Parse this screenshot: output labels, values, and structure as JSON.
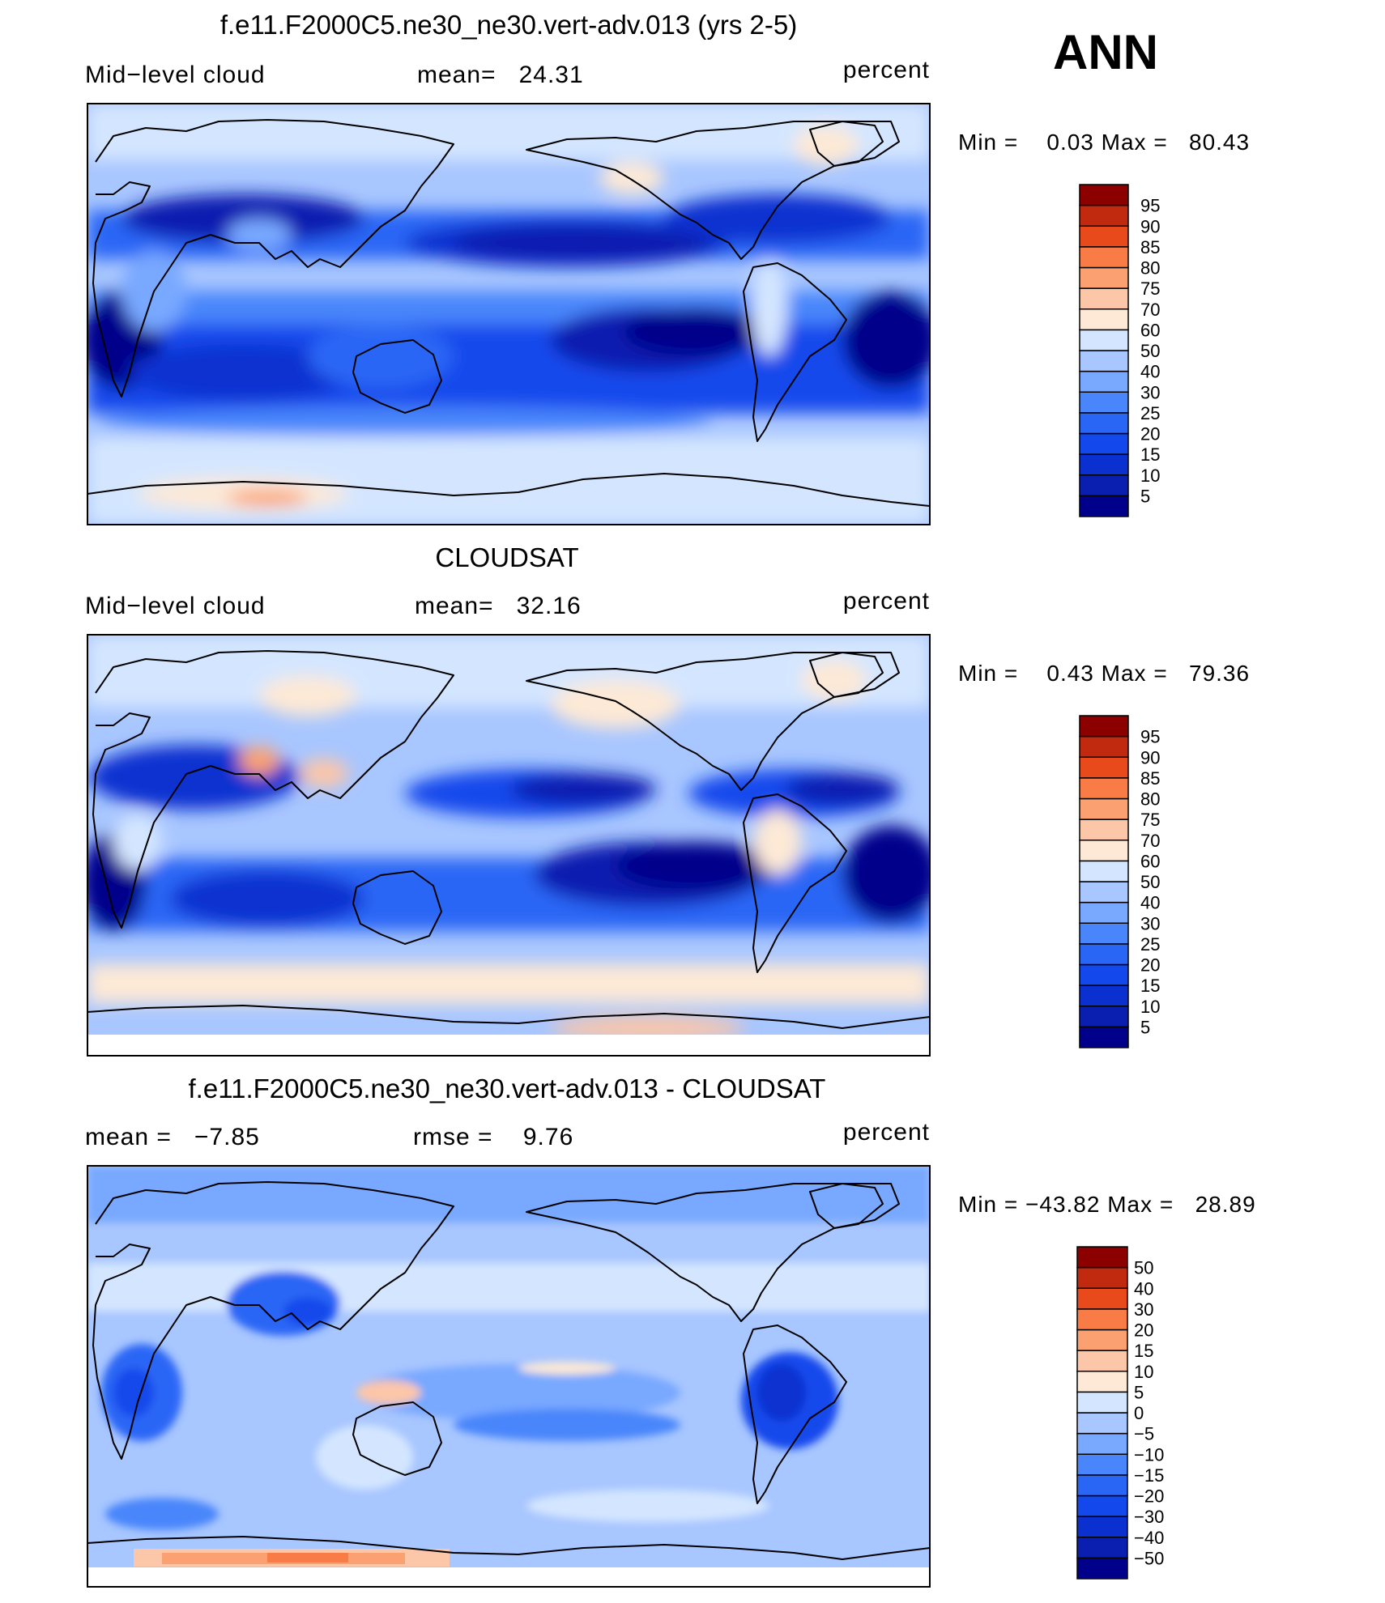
{
  "figure": {
    "season": "ANN"
  },
  "panels": [
    {
      "title": "f.e11.F2000C5.ne30_ne30.vert-adv.013 (yrs 2-5)",
      "left_label": "Mid−level cloud",
      "center_label": "mean=   24.31",
      "units": "percent",
      "minmax": "Min =    0.03 Max =   80.43",
      "colorbar_levels": [
        "5",
        "10",
        "15",
        "20",
        "25",
        "30",
        "40",
        "50",
        "60",
        "70",
        "75",
        "80",
        "85",
        "90",
        "95"
      ]
    },
    {
      "title": "CLOUDSAT",
      "left_label": "Mid−level cloud",
      "center_label": "mean=   32.16",
      "units": "percent",
      "minmax": "Min =    0.43 Max =   79.36",
      "colorbar_levels": [
        "5",
        "10",
        "15",
        "20",
        "25",
        "30",
        "40",
        "50",
        "60",
        "70",
        "75",
        "80",
        "85",
        "90",
        "95"
      ]
    },
    {
      "title": "f.e11.F2000C5.ne30_ne30.vert-adv.013 - CLOUDSAT",
      "left_label": "mean =   −7.85",
      "center_label": "rmse =    9.76",
      "units": "percent",
      "minmax": "Min = −43.82 Max =   28.89",
      "colorbar_levels": [
        "−50",
        "−40",
        "−30",
        "−20",
        "−15",
        "−10",
        "−5",
        "0",
        "5",
        "10",
        "15",
        "20",
        "30",
        "40",
        "50"
      ]
    }
  ],
  "chart_data": [
    {
      "type": "heatmap",
      "title": "f.e11.F2000C5.ne30_ne30.vert-adv.013 (yrs 2-5)",
      "variable": "Mid−level cloud",
      "units": "percent",
      "mean": 24.31,
      "min": 0.03,
      "max": 80.43,
      "levels": [
        5,
        10,
        15,
        20,
        25,
        30,
        40,
        50,
        60,
        70,
        75,
        80,
        85,
        90,
        95
      ],
      "colors": [
        "#00008b",
        "#0a1fb0",
        "#0b30d0",
        "#1248ec",
        "#2a66f5",
        "#4a86fb",
        "#78a8ff",
        "#a8c6ff",
        "#d4e6ff",
        "#fde9d6",
        "#fcc6a8",
        "#fba070",
        "#f97b45",
        "#e94a1c",
        "#c12a0e",
        "#8c0000"
      ]
    },
    {
      "type": "heatmap",
      "title": "CLOUDSAT",
      "variable": "Mid−level cloud",
      "units": "percent",
      "mean": 32.16,
      "min": 0.43,
      "max": 79.36,
      "levels": [
        5,
        10,
        15,
        20,
        25,
        30,
        40,
        50,
        60,
        70,
        75,
        80,
        85,
        90,
        95
      ],
      "colors": [
        "#00008b",
        "#0a1fb0",
        "#0b30d0",
        "#1248ec",
        "#2a66f5",
        "#4a86fb",
        "#78a8ff",
        "#a8c6ff",
        "#d4e6ff",
        "#fde9d6",
        "#fcc6a8",
        "#fba070",
        "#f97b45",
        "#e94a1c",
        "#c12a0e",
        "#8c0000"
      ]
    },
    {
      "type": "heatmap",
      "title": "f.e11.F2000C5.ne30_ne30.vert-adv.013 - CLOUDSAT",
      "units": "percent",
      "mean": -7.85,
      "rmse": 9.76,
      "min": -43.82,
      "max": 28.89,
      "levels": [
        -50,
        -40,
        -30,
        -20,
        -15,
        -10,
        -5,
        0,
        5,
        10,
        15,
        20,
        30,
        40,
        50
      ],
      "colors": [
        "#00008b",
        "#0a1fb0",
        "#0b30d0",
        "#1248ec",
        "#2a66f5",
        "#4a86fb",
        "#78a8ff",
        "#a8c6ff",
        "#d4e6ff",
        "#fde9d6",
        "#fcc6a8",
        "#fba070",
        "#f97b45",
        "#e94a1c",
        "#c12a0e",
        "#8c0000"
      ]
    }
  ]
}
